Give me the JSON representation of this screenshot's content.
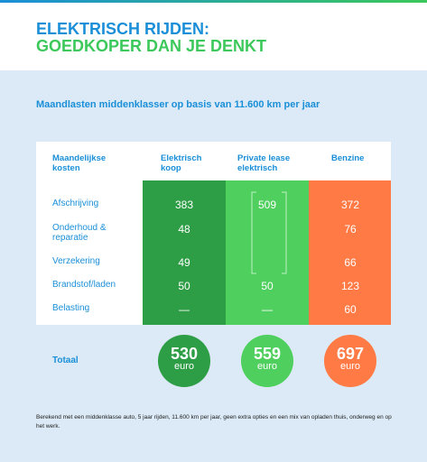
{
  "header": {
    "title_line1": "ELEKTRISCH RIJDEN:",
    "title_line2": "GOEDKOPER DAN JE DENKT"
  },
  "subtitle": "Maandlasten middenklasser op basis van 11.600 km per jaar",
  "table": {
    "headers": {
      "label": "Maandelijkse kosten",
      "elektrisch": "Elektrisch koop",
      "lease": "Private lease elektrisch",
      "benzine": "Benzine"
    },
    "rows": [
      {
        "label": "Afschrijving",
        "elektrisch": 383,
        "lease": 509,
        "benzine": 372
      },
      {
        "label": "Onderhoud & reparatie",
        "elektrisch": 48,
        "benzine": 76
      },
      {
        "label": "Verzekering",
        "elektrisch": 49,
        "benzine": 66
      },
      {
        "label": "Brandstof/laden",
        "elektrisch": 50,
        "lease": 50,
        "benzine": 123
      },
      {
        "label": "Belasting",
        "elektrisch": "—",
        "lease": "—",
        "benzine": 60
      }
    ],
    "total": {
      "label": "Totaal",
      "elektrisch": 530,
      "lease": 559,
      "benzine": 697,
      "unit": "euro"
    }
  },
  "footnote": "Berekend met een middenklasse auto, 5 jaar rijden, 11.600 km per jaar, geen extra opties en een mix van opladen thuis, onderweg en op het werk."
}
